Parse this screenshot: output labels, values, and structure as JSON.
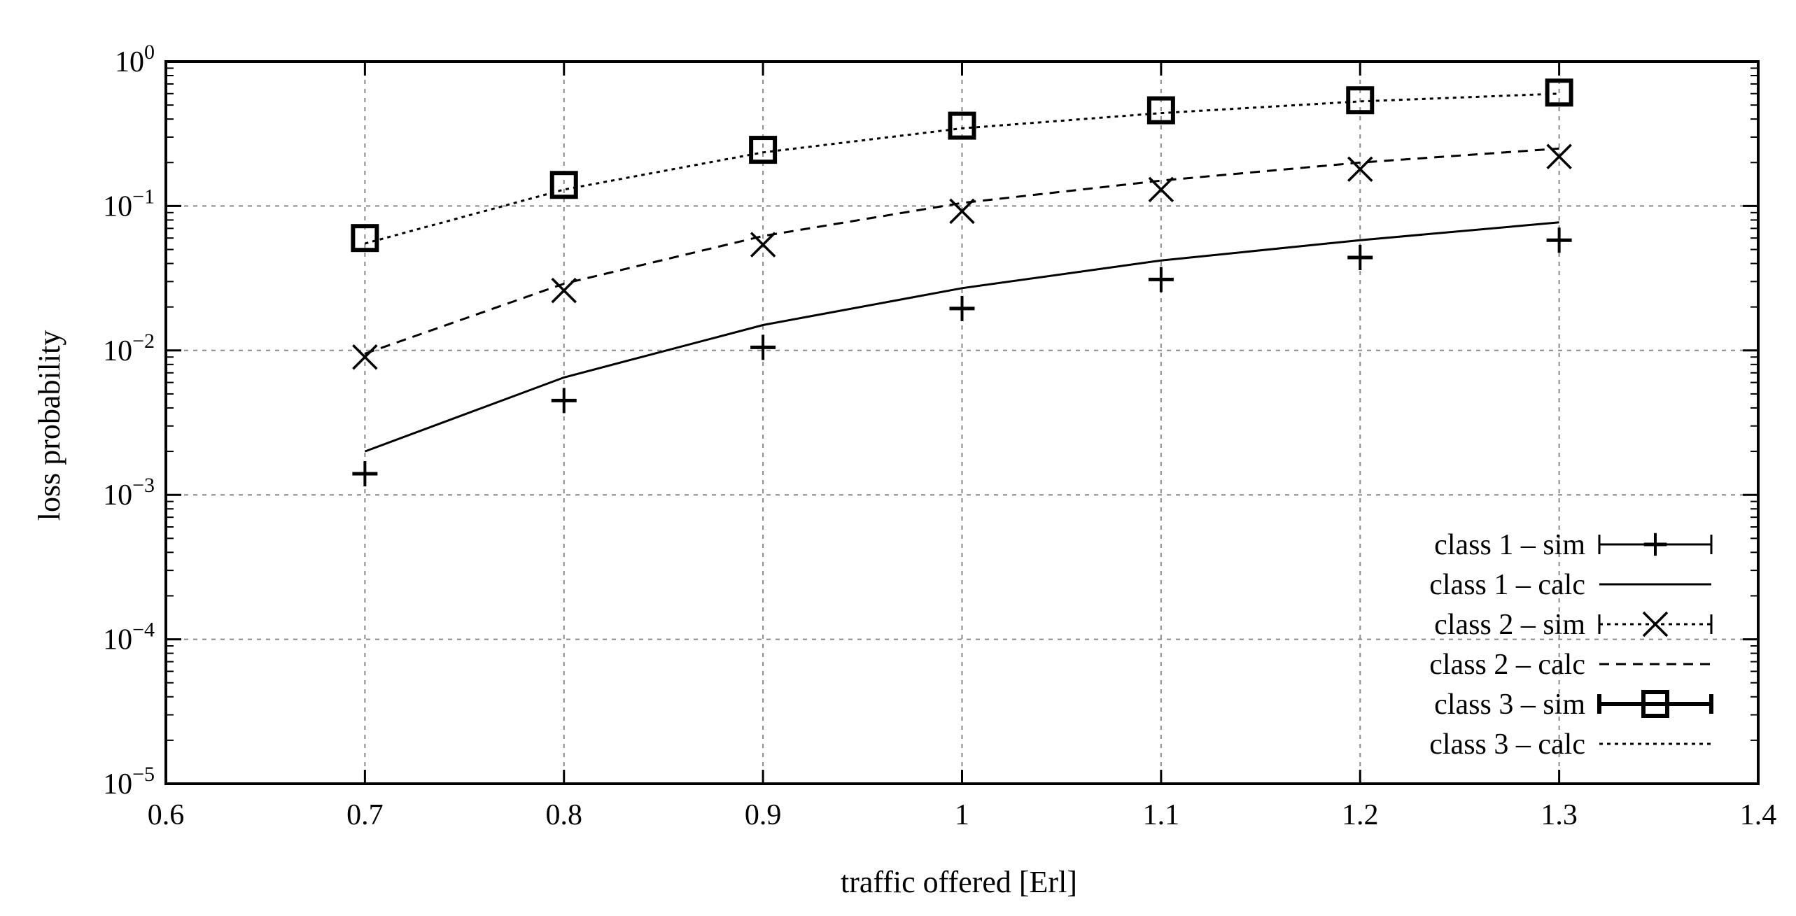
{
  "chart_data": {
    "type": "line",
    "title": "",
    "xlabel": "traffic offered [Erl]",
    "ylabel": "loss probability",
    "xlim": [
      0.6,
      1.4
    ],
    "ylim": [
      1e-05,
      1
    ],
    "yscale": "log",
    "grid": true,
    "legend_position": "bottom-right",
    "x_ticks": [
      {
        "value": 0.6,
        "label": "0.6"
      },
      {
        "value": 0.7,
        "label": "0.7"
      },
      {
        "value": 0.8,
        "label": "0.8"
      },
      {
        "value": 0.9,
        "label": "0.9"
      },
      {
        "value": 1.0,
        "label": "1"
      },
      {
        "value": 1.1,
        "label": "1.1"
      },
      {
        "value": 1.2,
        "label": "1.2"
      },
      {
        "value": 1.3,
        "label": "1.3"
      },
      {
        "value": 1.4,
        "label": "1.4"
      }
    ],
    "y_ticks": [
      {
        "value": 1,
        "base": "10",
        "exp": "0"
      },
      {
        "value": 0.1,
        "base": "10",
        "exp": "−1"
      },
      {
        "value": 0.01,
        "base": "10",
        "exp": "−2"
      },
      {
        "value": 0.001,
        "base": "10",
        "exp": "−3"
      },
      {
        "value": 0.0001,
        "base": "10",
        "exp": "−4"
      },
      {
        "value": 1e-05,
        "base": "10",
        "exp": "−5"
      }
    ],
    "x": [
      0.7,
      0.8,
      0.9,
      1.0,
      1.1,
      1.2,
      1.3
    ],
    "series": [
      {
        "name": "class 1 – sim",
        "kind": "points",
        "marker": "plus",
        "values": [
          0.0014,
          0.0045,
          0.0105,
          0.0195,
          0.031,
          0.044,
          0.058
        ]
      },
      {
        "name": "class 1 – calc",
        "kind": "line",
        "dash": "solid",
        "values": [
          0.002,
          0.0065,
          0.015,
          0.027,
          0.042,
          0.058,
          0.077
        ]
      },
      {
        "name": "class 2 – sim",
        "kind": "points",
        "marker": "cross",
        "values": [
          0.009,
          0.026,
          0.054,
          0.092,
          0.13,
          0.18,
          0.22
        ]
      },
      {
        "name": "class 2 – calc",
        "kind": "line",
        "dash": "dashed",
        "values": [
          0.0095,
          0.029,
          0.062,
          0.105,
          0.15,
          0.2,
          0.25
        ]
      },
      {
        "name": "class 3 – sim",
        "kind": "points",
        "marker": "square",
        "values": [
          0.06,
          0.14,
          0.245,
          0.36,
          0.46,
          0.54,
          0.61
        ]
      },
      {
        "name": "class 3 – calc",
        "kind": "line",
        "dash": "dotted",
        "values": [
          0.055,
          0.13,
          0.235,
          0.345,
          0.44,
          0.53,
          0.6
        ]
      }
    ]
  }
}
